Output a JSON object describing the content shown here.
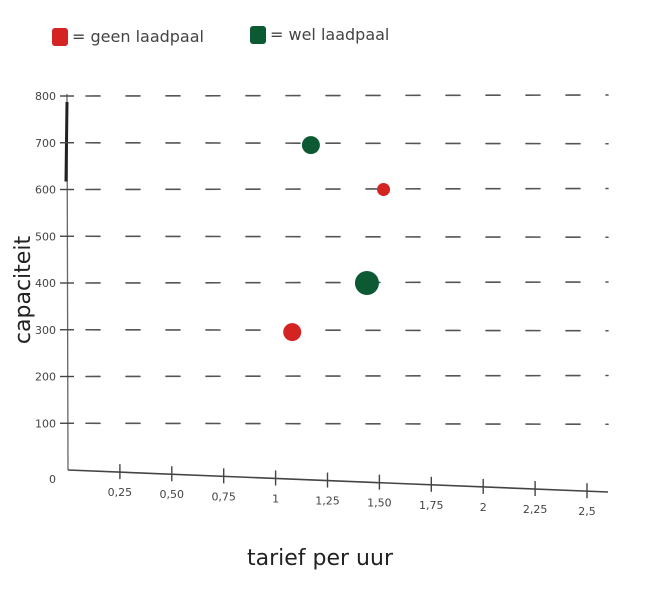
{
  "chart_data": {
    "type": "scatter",
    "title": "",
    "xlabel": "tarief per uur",
    "ylabel": "capaciteit",
    "xlim": [
      0,
      2.5
    ],
    "ylim": [
      0,
      800
    ],
    "x_ticks": [
      {
        "value": 0.25,
        "label": "0,25"
      },
      {
        "value": 0.5,
        "label": "0,50"
      },
      {
        "value": 0.75,
        "label": "0,75"
      },
      {
        "value": 1.0,
        "label": "1"
      },
      {
        "value": 1.25,
        "label": "1,25"
      },
      {
        "value": 1.5,
        "label": "1,50"
      },
      {
        "value": 1.75,
        "label": "1,75"
      },
      {
        "value": 2.0,
        "label": "2"
      },
      {
        "value": 2.25,
        "label": "2,25"
      },
      {
        "value": 2.5,
        "label": "2,5"
      }
    ],
    "y_ticks": [
      {
        "value": 0,
        "label": "0"
      },
      {
        "value": 100,
        "label": "100"
      },
      {
        "value": 200,
        "label": "200"
      },
      {
        "value": 300,
        "label": "300"
      },
      {
        "value": 400,
        "label": "400"
      },
      {
        "value": 500,
        "label": "500"
      },
      {
        "value": 600,
        "label": "600"
      },
      {
        "value": 700,
        "label": "700"
      },
      {
        "value": 800,
        "label": "800"
      }
    ],
    "grid": true,
    "legend_position": "top-left",
    "series": [
      {
        "name": "= geen laadpaal",
        "color": "#d42323",
        "points": [
          {
            "x": 1.08,
            "y": 295
          },
          {
            "x": 1.52,
            "y": 600
          }
        ]
      },
      {
        "name": "= wel laadpaal",
        "color": "#0c5a33",
        "points": [
          {
            "x": 1.17,
            "y": 695
          },
          {
            "x": 1.44,
            "y": 400
          }
        ]
      }
    ]
  }
}
